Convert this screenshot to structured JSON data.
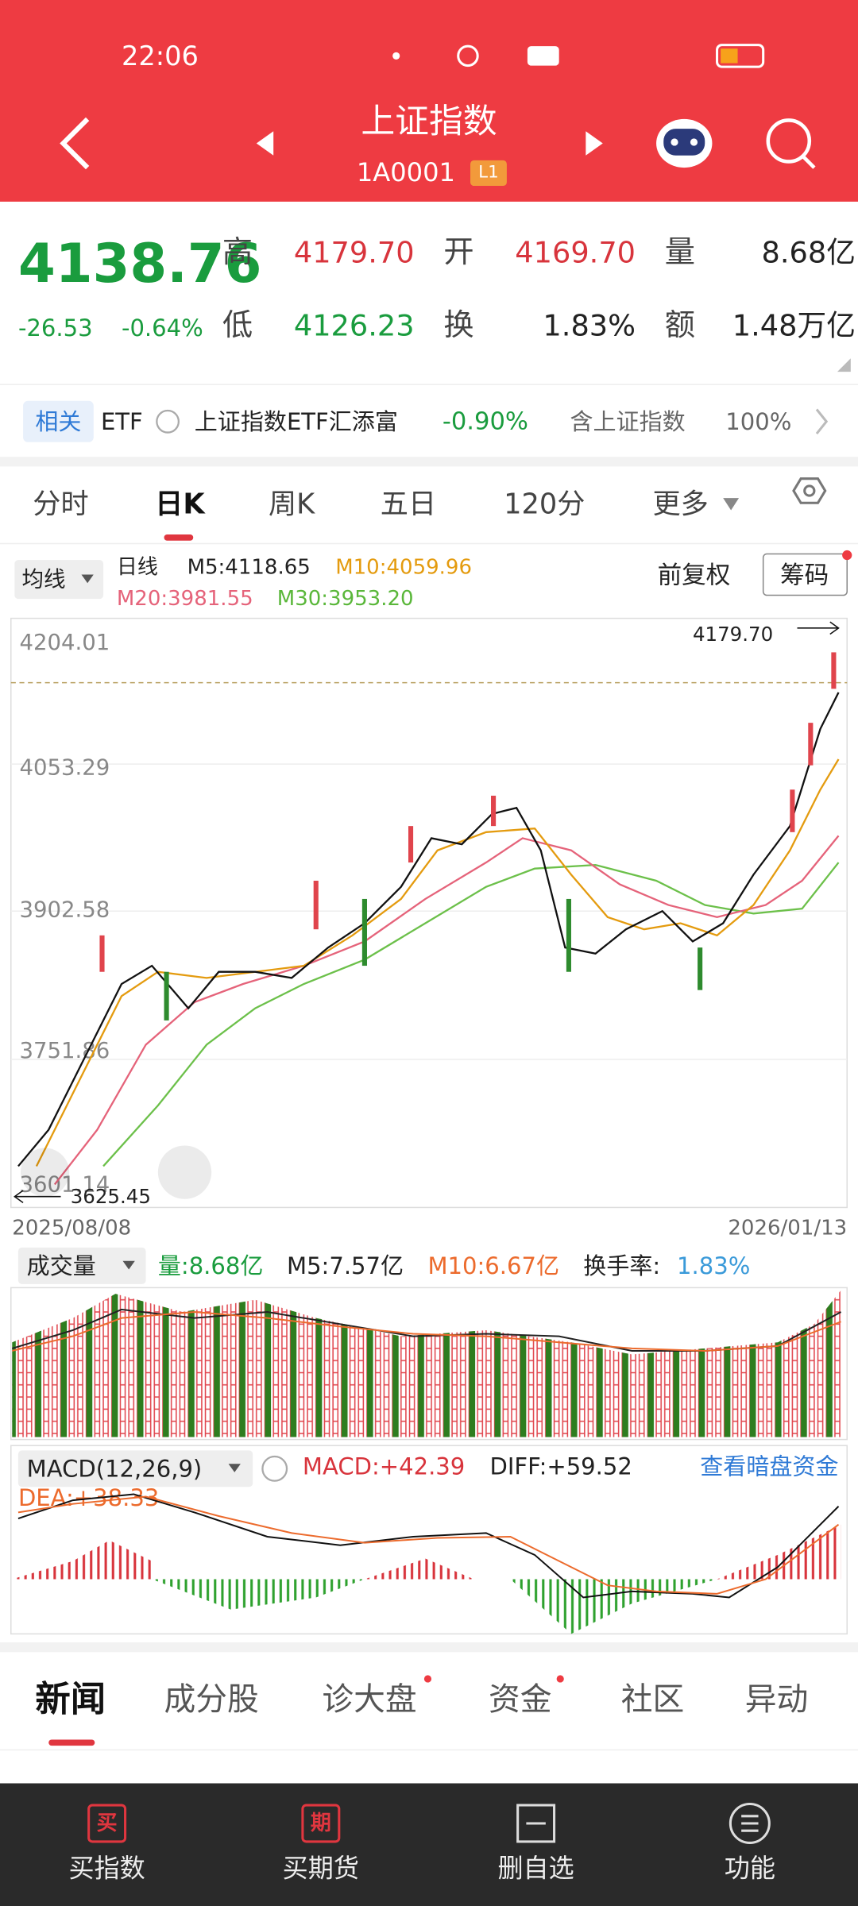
{
  "status_bar": {
    "time": "22:06"
  },
  "header": {
    "title": "上证指数",
    "code": "1A0001",
    "badge": "L1"
  },
  "quote": {
    "price": "4138.76",
    "change": "-26.53",
    "change_pct": "-0.64%",
    "fields": [
      {
        "label": "高",
        "value": "4179.70"
      },
      {
        "label": "开",
        "value": "4169.70"
      },
      {
        "label": "量",
        "value": "8.68亿"
      },
      {
        "label": "低",
        "value": "4126.23"
      },
      {
        "label": "换",
        "value": "1.83%"
      },
      {
        "label": "额",
        "value": "1.48万亿"
      }
    ]
  },
  "etf": {
    "tag": "相关",
    "type": "ETF",
    "name": "上证指数ETF汇添富",
    "change": "-0.90%",
    "weight_label": "含上证指数",
    "weight": "100%"
  },
  "period_tabs": [
    "分时",
    "日K",
    "周K",
    "五日",
    "120分",
    "更多"
  ],
  "chart": {
    "ma_selector": "均线",
    "line_type": "日线",
    "ma": [
      "M5:4118.65",
      "M10:4059.96",
      "M20:3981.55",
      "M30:3953.20"
    ],
    "adjust": "前复权",
    "chips": "筹码",
    "y_labels": [
      "4204.01",
      "4053.29",
      "3902.58",
      "3751.86",
      "3601.14"
    ],
    "high_marker": "4179.70",
    "low_marker": "3625.45",
    "start_date": "2025/08/08",
    "end_date": "2026/01/13"
  },
  "volume": {
    "selector": "成交量",
    "items": [
      "量:8.68亿",
      "M5:7.57亿",
      "M10:6.67亿"
    ],
    "turnover_label": "换手率:",
    "turnover": "1.83%"
  },
  "macd": {
    "selector": "MACD(12,26,9)",
    "macd": "MACD:+42.39",
    "diff": "DIFF:+59.52",
    "dea": "DEA:+38.33",
    "link": "查看暗盘资金"
  },
  "news_tabs": [
    "新闻",
    "成分股",
    "诊大盘",
    "资金",
    "社区",
    "异动"
  ],
  "bottom_nav": [
    {
      "icon": "买",
      "label": "买指数"
    },
    {
      "icon": "期",
      "label": "买期货"
    },
    {
      "label": "删自选"
    },
    {
      "label": "功能"
    }
  ]
}
